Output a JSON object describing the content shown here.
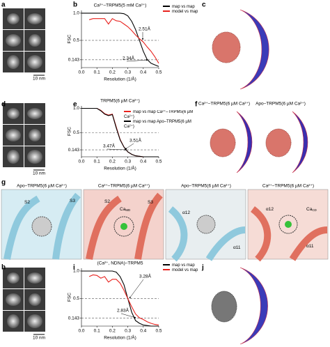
{
  "panel_labels": [
    "a",
    "b",
    "c",
    "d",
    "e",
    "f",
    "g",
    "h",
    "i",
    "j"
  ],
  "scale_bars": [
    "10 nm",
    "10 nm",
    "10 nm"
  ],
  "f": {
    "titles": [
      "Ca²⁺–TRPM5(6 µM Ca²⁺)",
      "Apo–TRPM5(6 µM Ca²⁺)"
    ]
  },
  "g": {
    "panels": [
      {
        "title": "Apo–TRPM5(6 µM Ca²⁺)",
        "labels": [
          {
            "main": "S2"
          },
          {
            "main": "S3"
          }
        ]
      },
      {
        "title": "Ca²⁺–TRPM5(6 µM Ca²⁺)",
        "labels": [
          {
            "main": "S2"
          },
          {
            "main": "Ca",
            "sub": "MD"
          },
          {
            "main": "S3"
          }
        ]
      },
      {
        "title": "Apo–TRPM5(6 µM Ca²⁺)",
        "labels": [
          {
            "main": "α12"
          },
          {
            "main": "α11"
          }
        ]
      },
      {
        "title": "Ca²⁺–TRPM5(6 µM Ca²⁺)",
        "labels": [
          {
            "main": "α12"
          },
          {
            "main": "Ca",
            "sub": "CD"
          },
          {
            "main": "α11"
          }
        ]
      }
    ]
  },
  "chart_data": [
    {
      "type": "line",
      "title": "Ca²⁺–TRPM5(5 mM Ca²⁺)",
      "x_label": "Resolution (1/Å)",
      "y_label": "FSC",
      "x": [
        0,
        0.025,
        0.05,
        0.075,
        0.1,
        0.125,
        0.15,
        0.175,
        0.2,
        0.225,
        0.25,
        0.275,
        0.3,
        0.325,
        0.35,
        0.375,
        0.4,
        0.425,
        0.45,
        0.475,
        0.5
      ],
      "series": [
        {
          "name": "map vs map",
          "color": "#000000",
          "values": [
            1,
            1,
            1,
            1,
            1,
            1,
            1,
            1,
            1,
            1,
            1,
            0.99,
            0.95,
            0.85,
            0.7,
            0.5,
            0.3,
            0.15,
            0.08,
            0.05,
            0.02
          ]
        },
        {
          "name": "model vs map",
          "color": "#e8211d",
          "values": [
            null,
            null,
            0.88,
            0.9,
            0.9,
            0.9,
            0.9,
            0.8,
            0.9,
            0.86,
            0.85,
            0.8,
            0.75,
            0.68,
            0.6,
            0.53,
            0.47,
            0.38,
            0.3,
            0.2,
            0.08
          ]
        }
      ],
      "annotations": [
        "2.51Å",
        "2.34Å"
      ],
      "xlim": [
        0,
        0.5
      ],
      "ylim": [
        0,
        1.05
      ],
      "xticks": [
        {
          "value": 0,
          "label": "0.0"
        },
        0.1,
        0.2,
        0.3,
        0.4,
        0.5
      ],
      "yticks": [
        0.143,
        0.5,
        {
          "value": 1,
          "label": "1.0"
        }
      ],
      "grid": true
    },
    {
      "type": "line",
      "title": "TRPM5(6 µM Ca²⁺)",
      "x_label": "Resolution (1/Å)",
      "y_label": "FSC",
      "x": [
        0,
        0.025,
        0.05,
        0.075,
        0.1,
        0.125,
        0.15,
        0.175,
        0.2,
        0.225,
        0.25,
        0.275,
        0.3,
        0.325,
        0.35,
        0.375,
        0.4,
        0.425,
        0.45,
        0.475,
        0.5
      ],
      "series": [
        {
          "name": "map vs map Ca²⁺–TRPM5(6 µM Ca²⁺)",
          "color": "#e8211d",
          "values": [
            1,
            1,
            1,
            1,
            1,
            0.96,
            0.89,
            0.86,
            0.88,
            0.62,
            0.36,
            0.2,
            0.1,
            0.05,
            0.02,
            0.01,
            0,
            0,
            0,
            0,
            0
          ]
        },
        {
          "name": "map vs map Apo–TRPM5(6 µM Ca²⁺)",
          "color": "#000000",
          "values": [
            1,
            1,
            1,
            1,
            1,
            0.95,
            0.88,
            0.85,
            0.87,
            0.6,
            0.35,
            0.2,
            0.1,
            0.05,
            0.02,
            0.01,
            0,
            0,
            0,
            0,
            0
          ]
        }
      ],
      "annotations": [
        "3.47Å",
        "3.51Å"
      ],
      "xlim": [
        0,
        0.5
      ],
      "ylim": [
        0,
        1.05
      ],
      "xticks": [
        {
          "value": 0,
          "label": "0.0"
        },
        0.1,
        0.2,
        0.3,
        0.4,
        0.5
      ],
      "yticks": [
        0.143,
        0.5,
        {
          "value": 1,
          "label": "1.0"
        }
      ],
      "grid": true
    },
    {
      "type": "line",
      "title": "(Ca²⁺, NDNA)–TRPM5",
      "x_label": "Resolution (1/Å)",
      "y_label": "FSC",
      "x": [
        0,
        0.025,
        0.05,
        0.075,
        0.1,
        0.125,
        0.15,
        0.175,
        0.2,
        0.225,
        0.25,
        0.275,
        0.3,
        0.325,
        0.35,
        0.375,
        0.4,
        0.425,
        0.45,
        0.475,
        0.5
      ],
      "series": [
        {
          "name": "map vs map",
          "color": "#000000",
          "values": [
            1,
            1,
            1,
            1,
            1,
            1,
            1,
            1,
            1,
            0.98,
            0.9,
            0.75,
            0.5,
            0.25,
            0.1,
            0.05,
            0.02,
            0.01,
            0,
            0,
            0
          ]
        },
        {
          "name": "model vs map",
          "color": "#e8211d",
          "values": [
            null,
            null,
            0.9,
            0.93,
            0.92,
            0.87,
            0.9,
            0.8,
            0.85,
            0.85,
            0.78,
            0.65,
            0.5,
            0.35,
            0.22,
            0.15,
            0.12,
            0.08,
            0.05,
            0.03,
            0.02
          ]
        }
      ],
      "annotations": [
        "3.28Å",
        "2.83Å"
      ],
      "xlim": [
        0,
        0.5
      ],
      "ylim": [
        0,
        1.05
      ],
      "xticks": [
        {
          "value": 0,
          "label": "0.0"
        },
        0.1,
        0.2,
        0.3,
        0.4,
        0.5
      ],
      "yticks": [
        0.143,
        0.5,
        {
          "value": 1,
          "label": "1.0"
        }
      ],
      "grid": true
    }
  ]
}
